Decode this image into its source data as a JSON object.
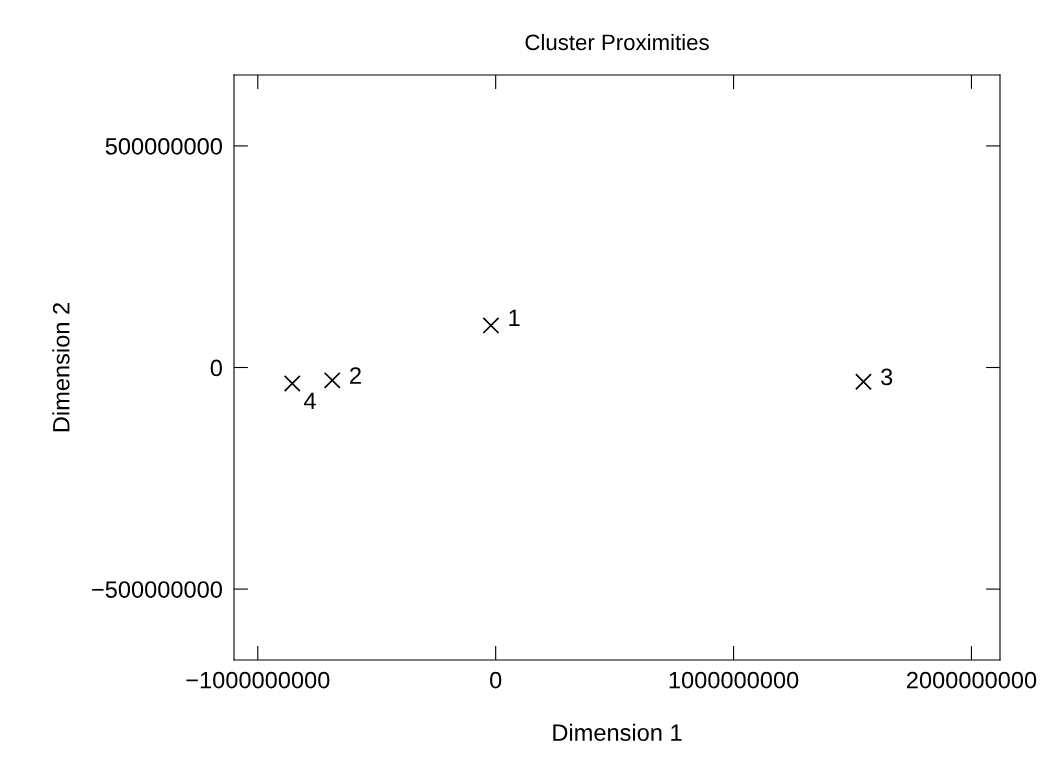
{
  "chart_data": {
    "type": "scatter",
    "title": "Cluster Proximities",
    "xlabel": "Dimension 1",
    "ylabel": "Dimension 2",
    "x": [
      -20000000,
      -687000000,
      1546000000,
      -855000000
    ],
    "series": [
      {
        "color": "#000000",
        "values": [
          95000000,
          -29000000,
          -32000000,
          -36000000
        ]
      }
    ],
    "marker": "cross",
    "grid": false,
    "legend": false,
    "xlim": [
      -1100000000,
      2120000000
    ],
    "ylim": [
      -660000000,
      660000000
    ],
    "xticks": [
      {
        "value": -1000000000,
        "label": "−1000000000"
      },
      0,
      1000000000,
      2000000000
    ],
    "yticks": [
      {
        "value": -500000000,
        "label": "−500000000"
      },
      0,
      500000000
    ],
    "annotations": [
      {
        "text": "1",
        "x": -20000000,
        "y": 95000000
      },
      {
        "text": "2",
        "x": -687000000,
        "y": -29000000
      },
      {
        "text": "3",
        "x": 1546000000,
        "y": -32000000
      },
      {
        "text": "4",
        "x": -855000000,
        "y": -36000000
      }
    ]
  }
}
